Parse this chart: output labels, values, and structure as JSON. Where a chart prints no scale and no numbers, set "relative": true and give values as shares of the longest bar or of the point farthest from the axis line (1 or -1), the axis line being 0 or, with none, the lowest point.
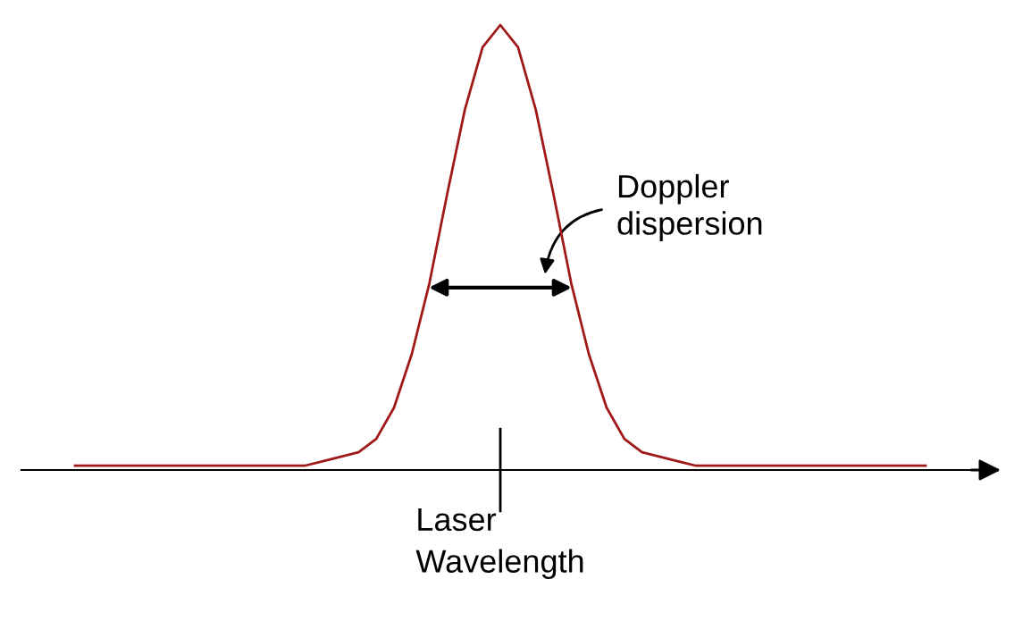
{
  "chart_data": {
    "type": "line",
    "relative": true,
    "categories": [
      null,
      null,
      null,
      null,
      null,
      null,
      null,
      null,
      null,
      null,
      null,
      null,
      null,
      null,
      null,
      null,
      null,
      null,
      null,
      null,
      null,
      null,
      null,
      null,
      null,
      null,
      null,
      null,
      null,
      null,
      null,
      null,
      null,
      null,
      null,
      null,
      null,
      null,
      null,
      null,
      null,
      null,
      null,
      null,
      null,
      null,
      null,
      null,
      null
    ],
    "series": [
      {
        "color": "#a01818",
        "values": [
          0.01,
          0.01,
          0.01,
          0.01,
          0.01,
          0.01,
          0.01,
          0.01,
          0.01,
          0.01,
          0.01,
          0.01,
          0.01,
          0.01,
          0.02,
          0.03,
          0.04,
          0.07,
          0.14,
          0.26,
          0.42,
          0.62,
          0.81,
          0.95,
          1.0,
          0.95,
          0.81,
          0.62,
          0.42,
          0.26,
          0.14,
          0.07,
          0.04,
          0.03,
          0.02,
          0.01,
          0.01,
          0.01,
          0.01,
          0.01,
          0.01,
          0.01,
          0.01,
          0.01,
          0.01,
          0.01,
          0.01,
          0.01,
          0.01
        ]
      }
    ],
    "annotations": [
      "Doppler\ndispersion",
      "Laser\nWavelength"
    ],
    "grid": false,
    "legend": false,
    "marker": "none",
    "line_style": "solid"
  }
}
